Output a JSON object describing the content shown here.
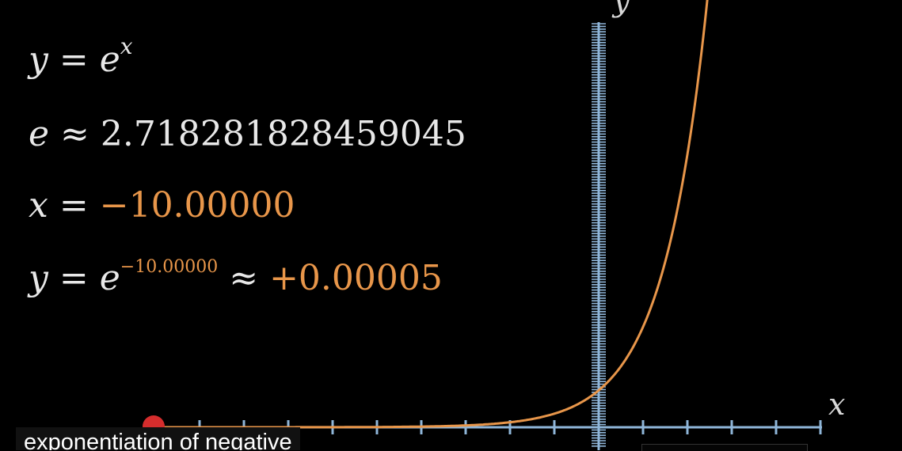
{
  "equations": {
    "line1": {
      "y": "y",
      "eq": "=",
      "base": "e",
      "exp": "x"
    },
    "line2": {
      "e": "e",
      "approx": "≈",
      "value": "2.718281828459045"
    },
    "line3": {
      "x": "x",
      "eq": "=",
      "value": "−10.00000"
    },
    "line4": {
      "y": "y",
      "eq": "=",
      "base": "e",
      "exp": "−10.00000",
      "approx": "≈",
      "result": "+0.00005"
    }
  },
  "axes": {
    "x_label": "x",
    "y_label": "y"
  },
  "caption": "exponentiation of negative",
  "colors": {
    "curve": "#e8964a",
    "axis": "#8fb6d9",
    "dot": "#d52d2d",
    "text": "#e8e8e8",
    "accent": "#e8964a"
  },
  "chart_data": {
    "type": "line",
    "series": [
      {
        "function": "y = e^x"
      }
    ],
    "marker": {
      "x": -10,
      "y": 5e-05
    }
  }
}
